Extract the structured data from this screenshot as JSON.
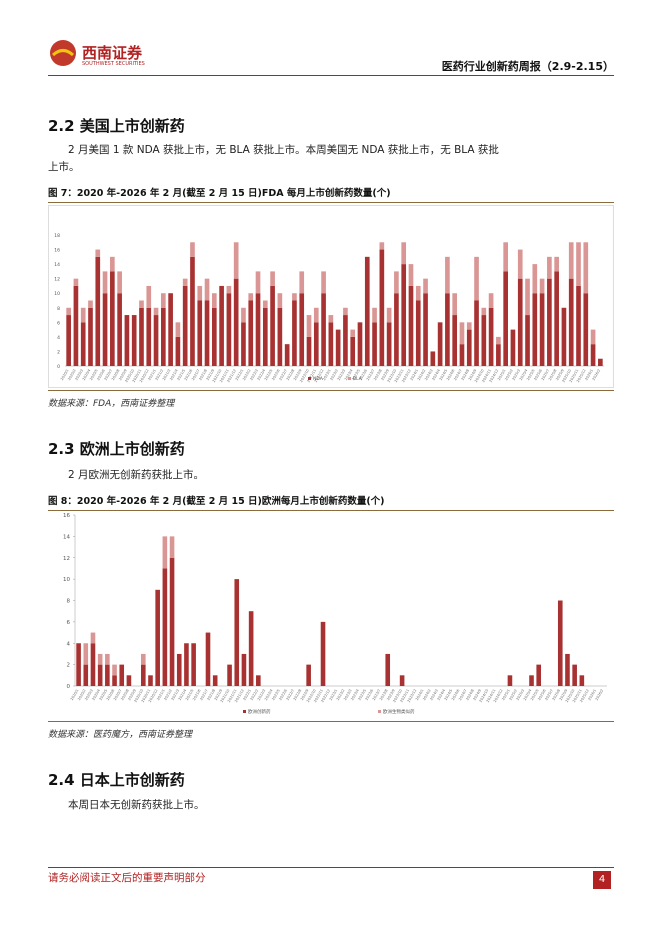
{
  "header": {
    "logo_text": "西南证券",
    "logo_en": "SOUTHWEST SECURITIES",
    "report_title": "医药行业创新药周报（2.9-2.15）"
  },
  "sections": [
    {
      "heading": "2.2 美国上市创新药",
      "paragraph": "2 月美国 1 款 NDA 获批上市，无 BLA 获批上市。本周美国无 NDA 获批上市，无 BLA 获批上市。",
      "figure_caption": "图 7：2020 年-2026 年 2 月(截至 2 月 15 日)FDA 每月上市创新药数量(个)",
      "source": "数据来源：FDA，西南证券整理"
    },
    {
      "heading": "2.3 欧洲上市创新药",
      "paragraph": "2 月欧洲无创新药获批上市。",
      "figure_caption": "图 8：2020 年-2026 年 2 月(截至 2 月 15 日)欧洲每月上市创新药数量(个)",
      "source": "数据来源：医药魔方，西南证券整理"
    },
    {
      "heading": "2.4 日本上市创新药",
      "paragraph": "本周日本无创新药获批上市。"
    }
  ],
  "chart_data": [
    {
      "type": "stacked_bar",
      "categories": [
        "2020/1",
        "2020/2",
        "2020/3",
        "2020/4",
        "2020/5",
        "2020/6",
        "2020/7",
        "2020/8",
        "2020/9",
        "2020/10",
        "2020/11",
        "2020/12",
        "2021/1",
        "2021/2",
        "2021/3",
        "2021/4",
        "2021/5",
        "2021/6",
        "2021/7",
        "2021/8",
        "2021/9",
        "2021/10",
        "2021/11",
        "2021/12",
        "2022/1",
        "2022/2",
        "2022/3",
        "2022/4",
        "2022/5",
        "2022/6",
        "2022/7",
        "2022/8",
        "2022/9",
        "2022/10",
        "2022/11",
        "2022/12",
        "2023/1",
        "2023/2",
        "2023/3",
        "2023/4",
        "2023/5",
        "2023/6",
        "2023/7",
        "2023/8",
        "2023/9",
        "2023/10",
        "2023/11",
        "2023/12",
        "2024/1",
        "2024/2",
        "2024/3",
        "2024/4",
        "2024/5",
        "2024/6",
        "2024/7",
        "2024/8",
        "2024/9",
        "2024/10",
        "2024/11",
        "2024/12",
        "2025/1",
        "2025/2",
        "2025/3",
        "2025/4",
        "2025/5",
        "2025/6",
        "2025/7",
        "2025/8",
        "2025/9",
        "2025/10",
        "2025/11",
        "2025/12",
        "2026/1",
        "2026/2"
      ],
      "series": [
        {
          "name": "NDA",
          "color": "#a83232",
          "values": [
            7,
            11,
            6,
            8,
            15,
            10,
            13,
            10,
            7,
            7,
            8,
            8,
            7,
            8,
            10,
            4,
            11,
            15,
            9,
            9,
            8,
            11,
            10,
            12,
            6,
            9,
            10,
            8,
            11,
            8,
            3,
            9,
            10,
            4,
            6,
            10,
            6,
            5,
            7,
            4,
            6,
            15,
            6,
            16,
            6,
            10,
            14,
            11,
            9,
            10,
            2,
            6,
            10,
            7,
            3,
            5,
            9,
            7,
            8,
            3,
            13,
            5,
            12,
            7,
            10,
            10,
            12,
            13,
            8,
            12,
            11,
            10,
            3,
            1
          ]
        },
        {
          "name": "BLA",
          "color": "#d99694",
          "values": [
            1,
            1,
            2,
            1,
            1,
            3,
            2,
            3,
            0,
            0,
            1,
            3,
            1,
            2,
            0,
            2,
            1,
            2,
            2,
            3,
            2,
            0,
            1,
            5,
            2,
            1,
            3,
            1,
            2,
            2,
            0,
            1,
            3,
            3,
            2,
            3,
            1,
            0,
            1,
            1,
            0,
            0,
            2,
            1,
            2,
            3,
            3,
            3,
            2,
            2,
            0,
            0,
            5,
            3,
            3,
            1,
            6,
            1,
            2,
            1,
            4,
            0,
            4,
            5,
            4,
            2,
            3,
            2,
            0,
            5,
            6,
            7,
            2,
            0
          ]
        }
      ],
      "ylim": [
        0,
        18
      ],
      "yticks": [
        0,
        2,
        4,
        6,
        8,
        10,
        12,
        14,
        16,
        18
      ]
    },
    {
      "type": "stacked_bar",
      "categories": [
        "2020/1",
        "2020/2",
        "2020/3",
        "2020/4",
        "2020/5",
        "2020/6",
        "2020/7",
        "2020/8",
        "2020/9",
        "2020/10",
        "2020/11",
        "2020/12",
        "2021/1",
        "2021/2",
        "2021/3",
        "2021/4",
        "2021/5",
        "2021/6",
        "2021/7",
        "2021/8",
        "2021/9",
        "2021/10",
        "2021/11",
        "2021/12",
        "2022/1",
        "2022/2",
        "2022/3",
        "2022/4",
        "2022/5",
        "2022/6",
        "2022/7",
        "2022/8",
        "2022/9",
        "2022/10",
        "2022/11",
        "2022/12",
        "2023/1",
        "2023/2",
        "2023/3",
        "2023/4",
        "2023/5",
        "2023/6",
        "2023/7",
        "2023/8",
        "2023/9",
        "2023/10",
        "2023/11",
        "2023/12",
        "2024/1",
        "2024/2",
        "2024/3",
        "2024/4",
        "2024/5",
        "2024/6",
        "2024/7",
        "2024/8",
        "2024/9",
        "2024/10",
        "2024/11",
        "2024/12",
        "2025/1",
        "2025/2",
        "2025/3",
        "2025/4",
        "2025/5",
        "2025/6",
        "2025/7",
        "2025/8",
        "2025/9",
        "2025/10",
        "2025/11",
        "2025/12",
        "2026/1",
        "2026/2"
      ],
      "series": [
        {
          "name": "欧洲创新药",
          "color": "#a83232",
          "values": [
            4,
            2,
            4,
            2,
            2,
            1,
            2,
            1,
            0,
            2,
            1,
            9,
            11,
            12,
            3,
            4,
            4,
            0,
            5,
            1,
            0,
            2,
            10,
            3,
            7,
            1,
            0,
            0,
            0,
            0,
            0,
            0,
            2,
            0,
            6,
            0,
            0,
            0,
            0,
            0,
            0,
            0,
            0,
            3,
            0,
            1,
            0,
            0,
            0,
            0,
            0,
            0,
            0,
            0,
            0,
            0,
            0,
            0,
            0,
            0,
            1,
            0,
            0,
            1,
            2,
            0,
            0,
            8,
            3,
            2,
            1,
            0,
            0,
            0
          ]
        },
        {
          "name": "欧洲生物类似药",
          "color": "#d99694",
          "values": [
            0,
            2,
            1,
            1,
            1,
            1,
            0,
            0,
            0,
            1,
            0,
            0,
            3,
            2,
            0,
            0,
            0,
            0,
            0,
            0,
            0,
            0,
            0,
            0,
            0,
            0,
            0,
            0,
            0,
            0,
            0,
            0,
            0,
            0,
            0,
            0,
            0,
            0,
            0,
            0,
            0,
            0,
            0,
            0,
            0,
            0,
            0,
            0,
            0,
            0,
            0,
            0,
            0,
            0,
            0,
            0,
            0,
            0,
            0,
            0,
            0,
            0,
            0,
            0,
            0,
            0,
            0,
            0,
            0,
            0,
            0,
            0,
            0,
            0
          ]
        }
      ],
      "ylim": [
        0,
        16
      ],
      "yticks": [
        0,
        2,
        4,
        6,
        8,
        10,
        12,
        14,
        16
      ]
    }
  ],
  "footer": {
    "disclaimer": "请务必阅读正文后的重要声明部分",
    "page": 4
  }
}
